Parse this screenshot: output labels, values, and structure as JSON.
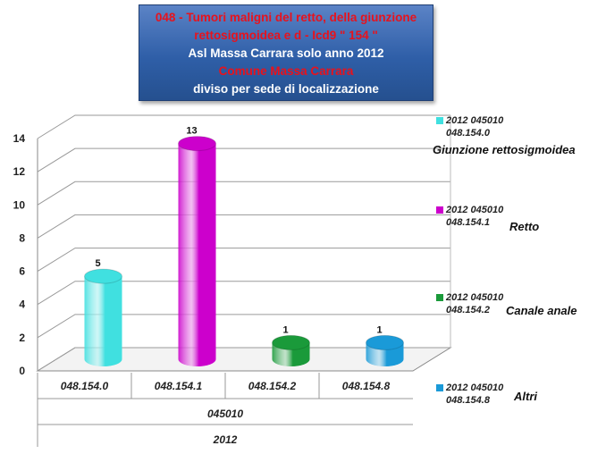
{
  "title_lines": [
    {
      "text": "048 -  Tumori maligni del retto, della giunzione",
      "color": "#e8121c"
    },
    {
      "text": "rettosigmoidea e d - Icd9 \" 154 \"",
      "color": "#e8121c"
    },
    {
      "text": "Asl Massa Carrara solo anno 2012",
      "color": "#ffffff"
    },
    {
      "text": "Comune Massa Carrara",
      "color": "#e8121c"
    },
    {
      "text": "diviso per sede di localizzazione",
      "color": "#ffffff"
    }
  ],
  "chart_data": {
    "type": "bar",
    "style": "3d-cylinder",
    "title": "048 -  Tumori maligni del retto, della giunzione rettosigmoidea e d - Icd9 \" 154 \" Asl Massa Carrara solo anno 2012 Comune Massa Carrara diviso per sede di localizzazione",
    "categories": [
      "048.154.0",
      "048.154.1",
      "048.154.2",
      "048.154.8"
    ],
    "category_group_labels": [
      "045010",
      "2012"
    ],
    "values": [
      5,
      13,
      1,
      1
    ],
    "colors": [
      "#40e0e0",
      "#cc00cc",
      "#1a9a3a",
      "#1a9ad8"
    ],
    "ylim": [
      0,
      14
    ],
    "yticks": [
      0,
      2,
      4,
      6,
      8,
      10,
      12,
      14
    ],
    "grid": true,
    "data_labels": true,
    "legend_position": "right",
    "legend": [
      {
        "code_line1": "2012 045010",
        "code_line2": "048.154.0",
        "name": "Giunzione rettosigmoidea",
        "color": "#40e0e0"
      },
      {
        "code_line1": "2012 045010",
        "code_line2": "048.154.1",
        "name": "Retto",
        "color": "#cc00cc"
      },
      {
        "code_line1": "2012 045010",
        "code_line2": "048.154.2",
        "name": "Canale anale",
        "color": "#1a9a3a"
      },
      {
        "code_line1": "2012 045010",
        "code_line2": "048.154.8",
        "name": "Altri",
        "color": "#1a9ad8"
      }
    ]
  }
}
